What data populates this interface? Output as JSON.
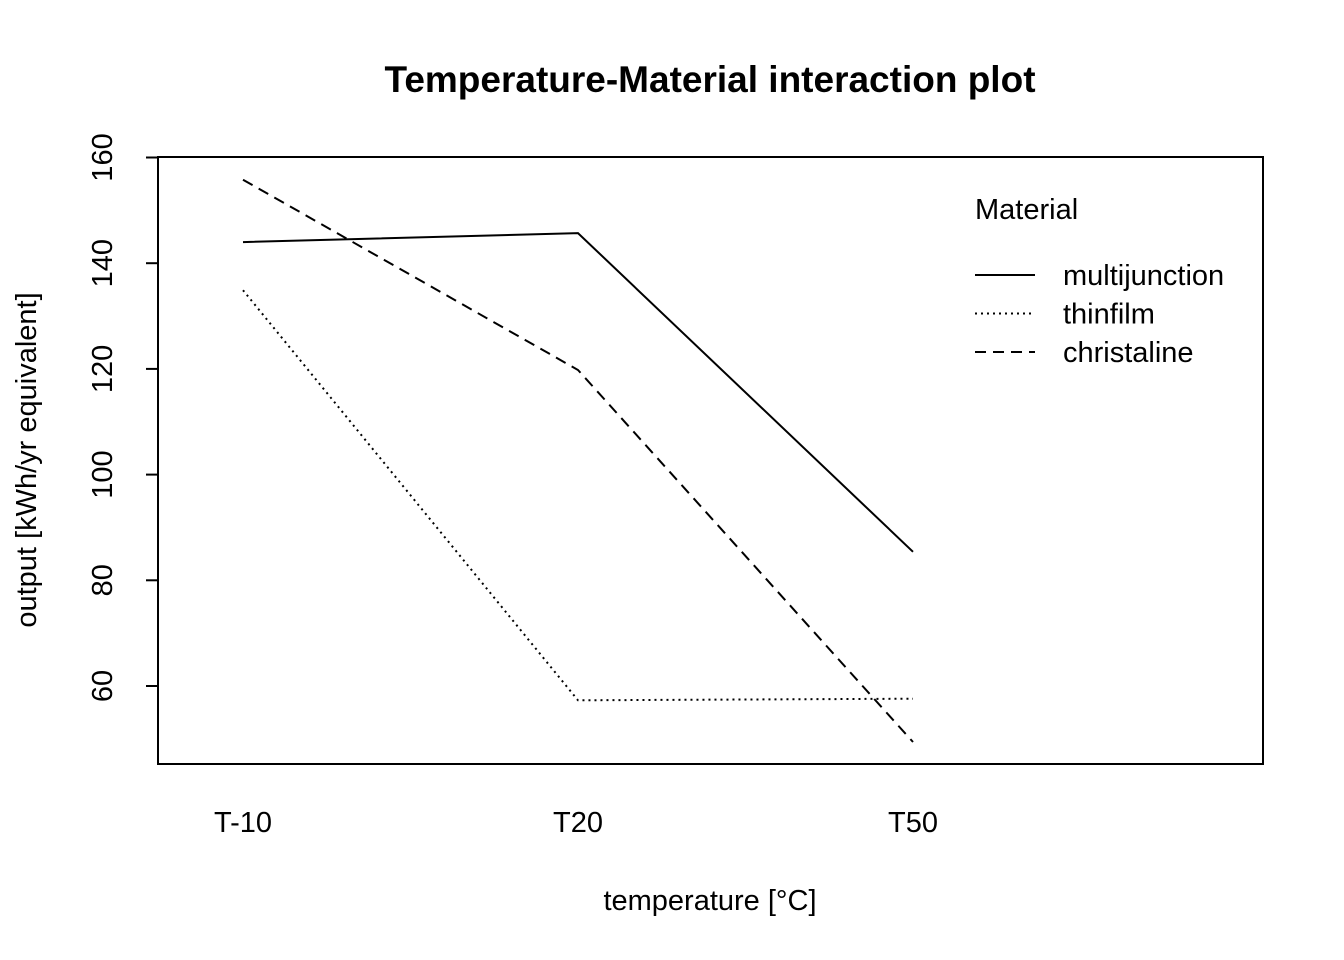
{
  "chart_data": {
    "type": "line",
    "title": "Temperature-Material interaction plot",
    "xlabel": "temperature [°C]",
    "ylabel": "output [kWh/yr equivalent]",
    "categories": [
      "T-10",
      "T20",
      "T50"
    ],
    "y_ticks": [
      60,
      80,
      100,
      120,
      140,
      160
    ],
    "ylim": [
      45,
      160
    ],
    "grid": false,
    "legend": {
      "title": "Material",
      "placement": "top-right"
    },
    "series": [
      {
        "name": "multijunction",
        "values": [
          144.0,
          145.7,
          85.4
        ],
        "line_style": "solid"
      },
      {
        "name": "thinfilm",
        "values": [
          134.9,
          57.3,
          57.6
        ],
        "line_style": "dotted"
      },
      {
        "name": "christaline",
        "values": [
          155.8,
          119.8,
          49.4
        ],
        "line_style": "dashed"
      }
    ],
    "colors": {
      "line": "#000000",
      "background": "#ffffff"
    }
  }
}
